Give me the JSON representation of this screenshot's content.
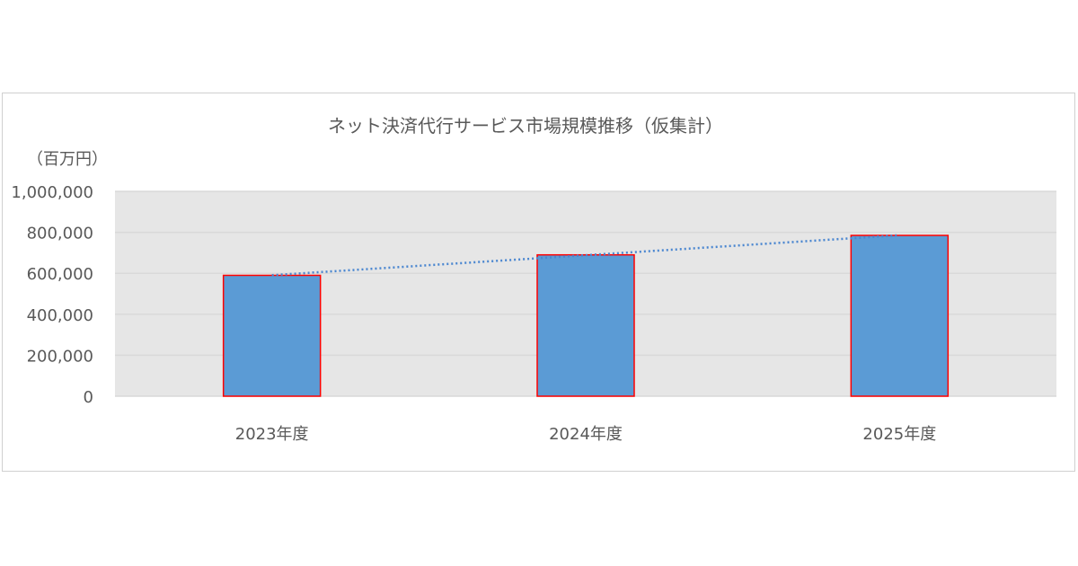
{
  "chart_data": {
    "type": "bar",
    "title": "ネット決済代行サービス市場規模推移（仮集計）",
    "unit_label": "（百万円）",
    "categories": [
      "2023年度",
      "2024年度",
      "2025年度"
    ],
    "values": [
      590000,
      690000,
      785000
    ],
    "ylim": [
      0,
      1000000
    ],
    "yticks": [
      "0",
      "200,000",
      "400,000",
      "600,000",
      "800,000",
      "1,000,000"
    ],
    "ytick_values": [
      0,
      200000,
      400000,
      600000,
      800000,
      1000000
    ],
    "grid": true,
    "trendline": "linear, dotted",
    "colors": {
      "bar_fill": "#5b9bd5",
      "bar_border": "#ff0000",
      "trendline": "#4a86d0",
      "plot_bg": "#e6e6e6",
      "grid": "#d9d9d9"
    }
  }
}
